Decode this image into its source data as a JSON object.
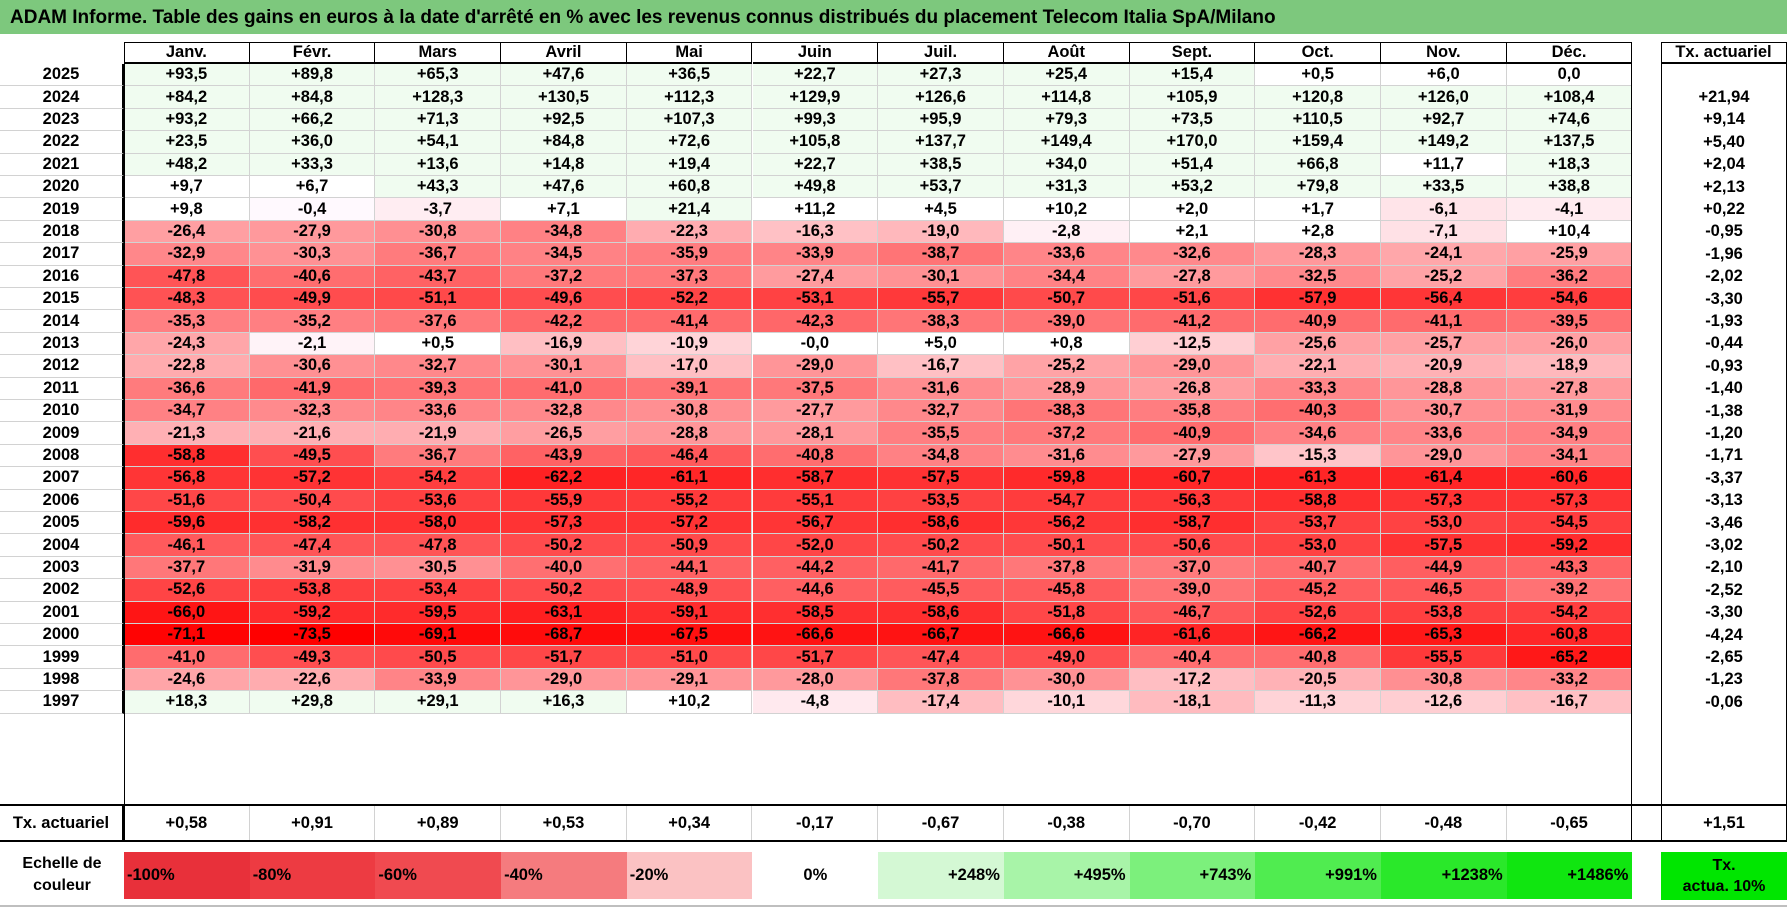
{
  "title": "ADAM Informe. Table des gains en euros à la date d'arrêté en % avec les revenus connus distribués du placement Telecom Italia SpA/Milano",
  "months": [
    "Janv.",
    "Févr.",
    "Mars",
    "Avril",
    "Mai",
    "Juin",
    "Juil.",
    "Août",
    "Sept.",
    "Oct.",
    "Nov.",
    "Déc."
  ],
  "tx_header": "Tx. actuariel",
  "rows": [
    {
      "year": "2025",
      "values": [
        "+93,5",
        "+89,8",
        "+65,3",
        "+47,6",
        "+36,5",
        "+22,7",
        "+27,3",
        "+25,4",
        "+15,4",
        "+0,5",
        "+6,0",
        "0,0"
      ],
      "tx": ""
    },
    {
      "year": "2024",
      "values": [
        "+84,2",
        "+84,8",
        "+128,3",
        "+130,5",
        "+112,3",
        "+129,9",
        "+126,6",
        "+114,8",
        "+105,9",
        "+120,8",
        "+126,0",
        "+108,4"
      ],
      "tx": "+21,94"
    },
    {
      "year": "2023",
      "values": [
        "+93,2",
        "+66,2",
        "+71,3",
        "+92,5",
        "+107,3",
        "+99,3",
        "+95,9",
        "+79,3",
        "+73,5",
        "+110,5",
        "+92,7",
        "+74,6"
      ],
      "tx": "+9,14"
    },
    {
      "year": "2022",
      "values": [
        "+23,5",
        "+36,0",
        "+54,1",
        "+84,8",
        "+72,6",
        "+105,8",
        "+137,7",
        "+149,4",
        "+170,0",
        "+159,4",
        "+149,2",
        "+137,5"
      ],
      "tx": "+5,40"
    },
    {
      "year": "2021",
      "values": [
        "+48,2",
        "+33,3",
        "+13,6",
        "+14,8",
        "+19,4",
        "+22,7",
        "+38,5",
        "+34,0",
        "+51,4",
        "+66,8",
        "+11,7",
        "+18,3"
      ],
      "tx": "+2,04"
    },
    {
      "year": "2020",
      "values": [
        "+9,7",
        "+6,7",
        "+43,3",
        "+47,6",
        "+60,8",
        "+49,8",
        "+53,7",
        "+31,3",
        "+53,2",
        "+79,8",
        "+33,5",
        "+38,8"
      ],
      "tx": "+2,13"
    },
    {
      "year": "2019",
      "values": [
        "+9,8",
        "-0,4",
        "-3,7",
        "+7,1",
        "+21,4",
        "+11,2",
        "+4,5",
        "+10,2",
        "+2,0",
        "+1,7",
        "-6,1",
        "-4,1"
      ],
      "tx": "+0,22"
    },
    {
      "year": "2018",
      "values": [
        "-26,4",
        "-27,9",
        "-30,8",
        "-34,8",
        "-22,3",
        "-16,3",
        "-19,0",
        "-2,8",
        "+2,1",
        "+2,8",
        "-7,1",
        "+10,4"
      ],
      "tx": "-0,95"
    },
    {
      "year": "2017",
      "values": [
        "-32,9",
        "-30,3",
        "-36,7",
        "-34,5",
        "-35,9",
        "-33,9",
        "-38,7",
        "-33,6",
        "-32,6",
        "-28,3",
        "-24,1",
        "-25,9"
      ],
      "tx": "-1,96"
    },
    {
      "year": "2016",
      "values": [
        "-47,8",
        "-40,6",
        "-43,7",
        "-37,2",
        "-37,3",
        "-27,4",
        "-30,1",
        "-34,4",
        "-27,8",
        "-32,5",
        "-25,2",
        "-36,2"
      ],
      "tx": "-2,02"
    },
    {
      "year": "2015",
      "values": [
        "-48,3",
        "-49,9",
        "-51,1",
        "-49,6",
        "-52,2",
        "-53,1",
        "-55,7",
        "-50,7",
        "-51,6",
        "-57,9",
        "-56,4",
        "-54,6"
      ],
      "tx": "-3,30"
    },
    {
      "year": "2014",
      "values": [
        "-35,3",
        "-35,2",
        "-37,6",
        "-42,2",
        "-41,4",
        "-42,3",
        "-38,3",
        "-39,0",
        "-41,2",
        "-40,9",
        "-41,1",
        "-39,5"
      ],
      "tx": "-1,93"
    },
    {
      "year": "2013",
      "values": [
        "-24,3",
        "-2,1",
        "+0,5",
        "-16,9",
        "-10,9",
        "-0,0",
        "+5,0",
        "+0,8",
        "-12,5",
        "-25,6",
        "-25,7",
        "-26,0"
      ],
      "tx": "-0,44"
    },
    {
      "year": "2012",
      "values": [
        "-22,8",
        "-30,6",
        "-32,7",
        "-30,1",
        "-17,0",
        "-29,0",
        "-16,7",
        "-25,2",
        "-29,0",
        "-22,1",
        "-20,9",
        "-18,9"
      ],
      "tx": "-0,93"
    },
    {
      "year": "2011",
      "values": [
        "-36,6",
        "-41,9",
        "-39,3",
        "-41,0",
        "-39,1",
        "-37,5",
        "-31,6",
        "-28,9",
        "-26,8",
        "-33,3",
        "-28,8",
        "-27,8"
      ],
      "tx": "-1,40"
    },
    {
      "year": "2010",
      "values": [
        "-34,7",
        "-32,3",
        "-33,6",
        "-32,8",
        "-30,8",
        "-27,7",
        "-32,7",
        "-38,3",
        "-35,8",
        "-40,3",
        "-30,7",
        "-31,9"
      ],
      "tx": "-1,38"
    },
    {
      "year": "2009",
      "values": [
        "-21,3",
        "-21,6",
        "-21,9",
        "-26,5",
        "-28,8",
        "-28,1",
        "-35,5",
        "-37,2",
        "-40,9",
        "-34,6",
        "-33,6",
        "-34,9"
      ],
      "tx": "-1,20"
    },
    {
      "year": "2008",
      "values": [
        "-58,8",
        "-49,5",
        "-36,7",
        "-43,9",
        "-46,4",
        "-40,8",
        "-34,8",
        "-31,6",
        "-27,9",
        "-15,3",
        "-29,0",
        "-34,1"
      ],
      "tx": "-1,71"
    },
    {
      "year": "2007",
      "values": [
        "-56,8",
        "-57,2",
        "-54,2",
        "-62,2",
        "-61,1",
        "-58,7",
        "-57,5",
        "-59,8",
        "-60,7",
        "-61,3",
        "-61,4",
        "-60,6"
      ],
      "tx": "-3,37"
    },
    {
      "year": "2006",
      "values": [
        "-51,6",
        "-50,4",
        "-53,6",
        "-55,9",
        "-55,2",
        "-55,1",
        "-53,5",
        "-54,7",
        "-56,3",
        "-58,8",
        "-57,3",
        "-57,3"
      ],
      "tx": "-3,13"
    },
    {
      "year": "2005",
      "values": [
        "-59,6",
        "-58,2",
        "-58,0",
        "-57,3",
        "-57,2",
        "-56,7",
        "-58,6",
        "-56,2",
        "-58,7",
        "-53,7",
        "-53,0",
        "-54,5"
      ],
      "tx": "-3,46"
    },
    {
      "year": "2004",
      "values": [
        "-46,1",
        "-47,4",
        "-47,8",
        "-50,2",
        "-50,9",
        "-52,0",
        "-50,2",
        "-50,1",
        "-50,6",
        "-53,0",
        "-57,5",
        "-59,2"
      ],
      "tx": "-3,02"
    },
    {
      "year": "2003",
      "values": [
        "-37,7",
        "-31,9",
        "-30,5",
        "-40,0",
        "-44,1",
        "-44,2",
        "-41,7",
        "-37,8",
        "-37,0",
        "-40,7",
        "-44,9",
        "-43,3"
      ],
      "tx": "-2,10"
    },
    {
      "year": "2002",
      "values": [
        "-52,6",
        "-53,8",
        "-53,4",
        "-50,2",
        "-48,9",
        "-44,6",
        "-45,5",
        "-45,8",
        "-39,0",
        "-45,2",
        "-46,5",
        "-39,2"
      ],
      "tx": "-2,52"
    },
    {
      "year": "2001",
      "values": [
        "-66,0",
        "-59,2",
        "-59,5",
        "-63,1",
        "-59,1",
        "-58,5",
        "-58,6",
        "-51,8",
        "-46,7",
        "-52,6",
        "-53,8",
        "-54,2"
      ],
      "tx": "-3,30"
    },
    {
      "year": "2000",
      "values": [
        "-71,1",
        "-73,5",
        "-69,1",
        "-68,7",
        "-67,5",
        "-66,6",
        "-66,7",
        "-66,6",
        "-61,6",
        "-66,2",
        "-65,3",
        "-60,8"
      ],
      "tx": "-4,24"
    },
    {
      "year": "1999",
      "values": [
        "-41,0",
        "-49,3",
        "-50,5",
        "-51,7",
        "-51,0",
        "-51,7",
        "-47,4",
        "-49,0",
        "-40,4",
        "-40,8",
        "-55,5",
        "-65,2"
      ],
      "tx": "-2,65"
    },
    {
      "year": "1998",
      "values": [
        "-24,6",
        "-22,6",
        "-33,9",
        "-29,0",
        "-29,1",
        "-28,0",
        "-37,8",
        "-30,0",
        "-17,2",
        "-20,5",
        "-30,8",
        "-33,2"
      ],
      "tx": "-1,23"
    },
    {
      "year": "1997",
      "values": [
        "+18,3",
        "+29,8",
        "+29,1",
        "+16,3",
        "+10,2",
        "-4,8",
        "-17,4",
        "-10,1",
        "-18,1",
        "-11,3",
        "-12,6",
        "-16,7"
      ],
      "tx": "-0,06"
    }
  ],
  "totals": {
    "label": "Tx. actuariel",
    "values": [
      "+0,58",
      "+0,91",
      "+0,89",
      "+0,53",
      "+0,34",
      "-0,17",
      "-0,67",
      "-0,38",
      "-0,70",
      "-0,42",
      "-0,48",
      "-0,65"
    ],
    "tx": "+1,51"
  },
  "scale": {
    "label_line1": "Echelle de",
    "label_line2": "couleur",
    "items": [
      {
        "label": "-100%",
        "color": "#e8303a"
      },
      {
        "label": "-80%",
        "color": "#ed3b42"
      },
      {
        "label": "-60%",
        "color": "#f04a50"
      },
      {
        "label": "-40%",
        "color": "#f57b7e"
      },
      {
        "label": "-20%",
        "color": "#fbc2c3"
      },
      {
        "label": "0%",
        "color": "#ffffff"
      },
      {
        "label": "+248%",
        "color": "#d4f8d4"
      },
      {
        "label": "+495%",
        "color": "#a8f4a8"
      },
      {
        "label": "+743%",
        "color": "#7cf07c"
      },
      {
        "label": "+991%",
        "color": "#50ec50"
      },
      {
        "label": "+1238%",
        "color": "#2ae82a"
      },
      {
        "label": "+1486%",
        "color": "#10e610"
      }
    ],
    "tx_line1": "Tx.",
    "tx_line2": "actua. 10%"
  },
  "colors": {
    "title_bg": "#7dc87d",
    "positive_base": "#f2fdf2",
    "negative_max": "#ff0000"
  }
}
